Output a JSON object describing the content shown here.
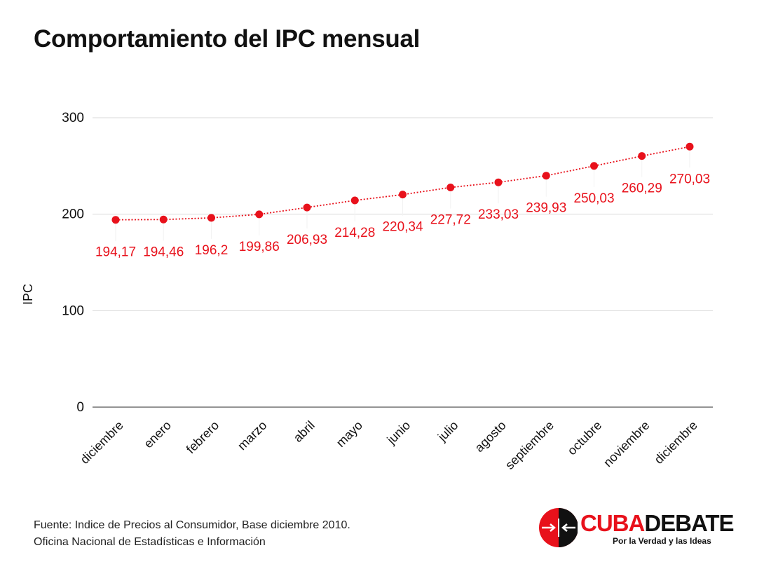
{
  "title": "Comportamiento del IPC mensual",
  "source_lines": [
    "Fuente: Indice de Precios al Consumidor, Base diciembre 2010.",
    "Oficina Nacional de Estadísticas e Información"
  ],
  "logo": {
    "name_part1": "CUBA",
    "name_part2": "DEBATE",
    "slogan": "Por la Verdad y las Ideas"
  },
  "colors": {
    "series": "#e8111b",
    "grid": "#d9d9d9",
    "axis": "#555555"
  },
  "chart_data": {
    "type": "line",
    "title": "Comportamiento del IPC mensual",
    "xlabel": "",
    "ylabel": "IPC",
    "ylim": [
      0,
      300
    ],
    "yticks": [
      0,
      100,
      200,
      300
    ],
    "grid": true,
    "categories": [
      "diciembre",
      "enero",
      "febrero",
      "marzo",
      "abril",
      "mayo",
      "junio",
      "julio",
      "agosto",
      "septiembre",
      "octubre",
      "noviembre",
      "diciembre"
    ],
    "values": [
      194.17,
      194.46,
      196.2,
      199.86,
      206.93,
      214.28,
      220.34,
      227.72,
      233.03,
      239.93,
      250.03,
      260.29,
      270.03
    ],
    "data_labels": [
      "194,17",
      "194,46",
      "196,2",
      "199,86",
      "206,93",
      "214,28",
      "220,34",
      "227,72",
      "233,03",
      "239,93",
      "250,03",
      "260,29",
      "270,03"
    ]
  }
}
